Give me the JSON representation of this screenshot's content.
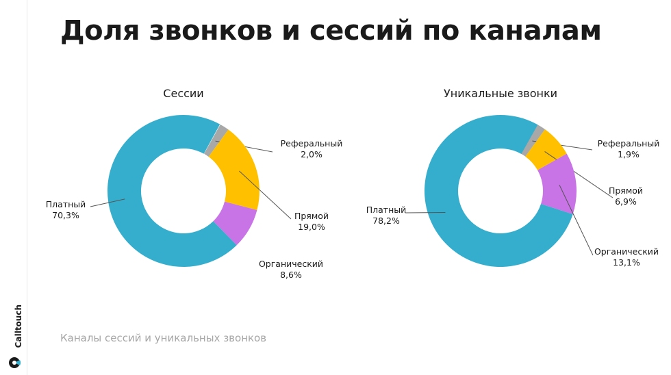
{
  "title": "Доля звонков и сессий по каналам",
  "footer": "Каналы сессий и уникальных звонков",
  "brand": "Calltouch",
  "colors": {
    "paid": "#35aecd",
    "referral": "#a8a8a8",
    "direct": "#ffc000",
    "organic": "#c873e6"
  },
  "chart_data": [
    {
      "type": "pie",
      "title": "Сессии",
      "slices": [
        {
          "label": "Реферальный",
          "value": "2,0%",
          "pct": 2.0,
          "color": "#a8a8a8"
        },
        {
          "label": "Прямой",
          "value": "19,0%",
          "pct": 19.0,
          "color": "#ffc000"
        },
        {
          "label": "Органический",
          "value": "8,6%",
          "pct": 8.6,
          "color": "#c873e6"
        },
        {
          "label": "Платный",
          "value": "70,3%",
          "pct": 70.3,
          "color": "#35aecd"
        }
      ]
    },
    {
      "type": "pie",
      "title": "Уникальные звонки",
      "slices": [
        {
          "label": "Реферальный",
          "value": "1,9%",
          "pct": 1.9,
          "color": "#a8a8a8"
        },
        {
          "label": "Прямой",
          "value": "6,9%",
          "pct": 6.9,
          "color": "#ffc000"
        },
        {
          "label": "Органический",
          "value": "13,1%",
          "pct": 13.1,
          "color": "#c873e6"
        },
        {
          "label": "Платный",
          "value": "78,2%",
          "pct": 78.2,
          "color": "#35aecd"
        }
      ]
    }
  ]
}
